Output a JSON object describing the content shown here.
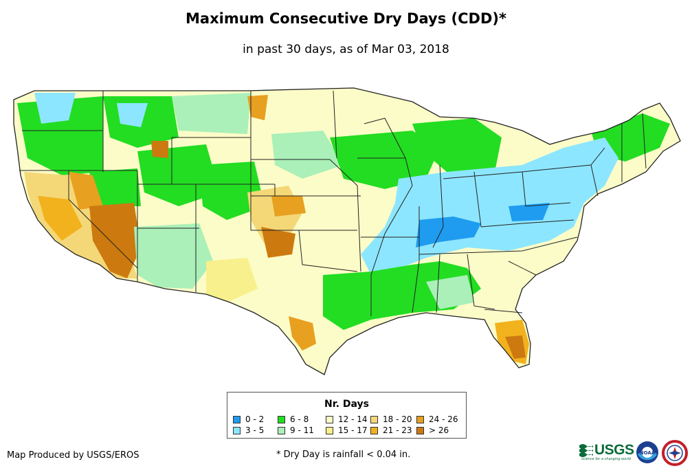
{
  "title": "Maximum Consecutive Dry Days (CDD)*",
  "subtitle": "in past 30 days, as of Mar 03, 2018",
  "legend": {
    "title": "Nr. Days",
    "items": [
      {
        "label": "0 - 2",
        "color": "#1f9cef"
      },
      {
        "label": "3 - 5",
        "color": "#8de6ff"
      },
      {
        "label": "6 - 8",
        "color": "#22dd22"
      },
      {
        "label": "9 - 11",
        "color": "#aaf0b8"
      },
      {
        "label": "12 - 14",
        "color": "#fcfcc8"
      },
      {
        "label": "15 - 17",
        "color": "#f8f08c"
      },
      {
        "label": "18 - 20",
        "color": "#f4d878"
      },
      {
        "label": "21 - 23",
        "color": "#f2b21e"
      },
      {
        "label": "24 - 26",
        "color": "#e8a020"
      },
      {
        "label": "> 26",
        "color": "#cc7a10"
      }
    ]
  },
  "credit": "Map Produced by USGS/EROS",
  "note": "* Dry Day is rainfall < 0.04 in.",
  "logos": {
    "usgs_text": "USGS",
    "usgs_tagline": "science for a changing world",
    "noaa_text": "NOAA"
  }
}
